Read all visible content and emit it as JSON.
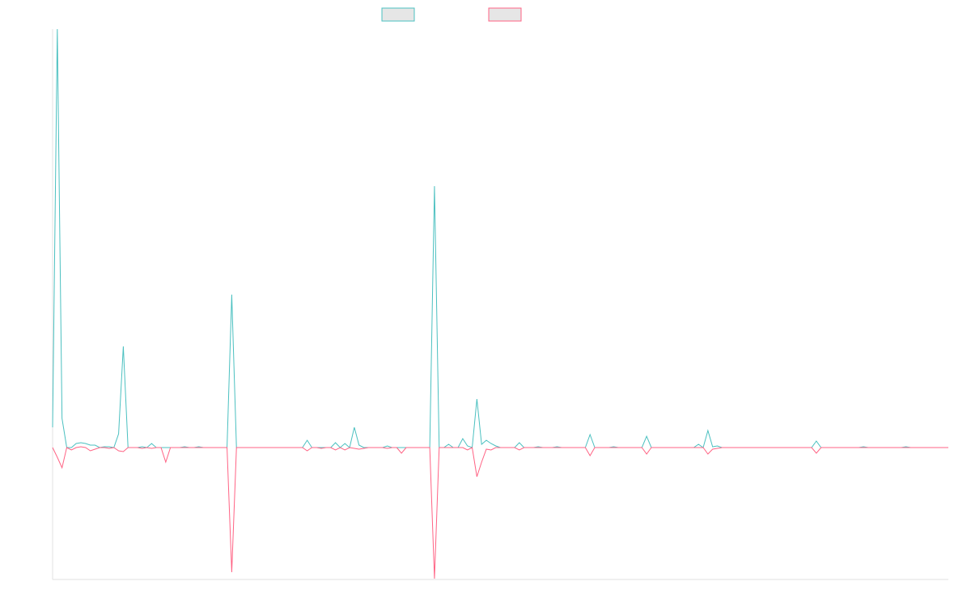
{
  "chart_data": {
    "type": "line",
    "ylim": [
      -163,
      517
    ],
    "series": [
      {
        "color": "#4bc0c0",
        "values": [
          25,
          517,
          36,
          0,
          0,
          5,
          6,
          5,
          3,
          3,
          0,
          1,
          1,
          0,
          17,
          125,
          0,
          0,
          0,
          1,
          0,
          5,
          0,
          0,
          0,
          0,
          0,
          0,
          1,
          0,
          0,
          1,
          0,
          0,
          0,
          0,
          0,
          0,
          189,
          0,
          0,
          0,
          0,
          0,
          0,
          0,
          0,
          0,
          0,
          0,
          0,
          0,
          0,
          0,
          9,
          0,
          0,
          0,
          0,
          0,
          6,
          0,
          5,
          0,
          25,
          3,
          0,
          0,
          0,
          0,
          0,
          2,
          0,
          0,
          0,
          0,
          0,
          0,
          0,
          0,
          0,
          323,
          0,
          0,
          4,
          0,
          0,
          11,
          2,
          0,
          60,
          4,
          9,
          5,
          2,
          0,
          0,
          0,
          0,
          6,
          0,
          0,
          0,
          1,
          0,
          0,
          0,
          1,
          0,
          0,
          0,
          0,
          0,
          0,
          16,
          0,
          0,
          0,
          0,
          1,
          0,
          0,
          0,
          0,
          0,
          0,
          14,
          0,
          0,
          0,
          0,
          0,
          0,
          0,
          0,
          0,
          0,
          4,
          0,
          21,
          1,
          2,
          0,
          0,
          0,
          0,
          0,
          0,
          0,
          0,
          0,
          0,
          0,
          0,
          0,
          0,
          0,
          0,
          0,
          0,
          0,
          0,
          8,
          0,
          0,
          0,
          0,
          0,
          0,
          0,
          0,
          0,
          1,
          0,
          0,
          0,
          0,
          0,
          0,
          0,
          0,
          1,
          0,
          0,
          0,
          0,
          0,
          0,
          0,
          0,
          0
        ]
      },
      {
        "color": "#ff6384",
        "values": [
          0,
          -12,
          -25,
          0,
          -3,
          0,
          1,
          0,
          -4,
          -2,
          0,
          0,
          -1,
          0,
          -4,
          -5,
          0,
          0,
          0,
          -1,
          0,
          -1,
          0,
          0,
          -18,
          0,
          0,
          0,
          0,
          0,
          0,
          0,
          0,
          0,
          0,
          0,
          0,
          0,
          -154,
          0,
          0,
          0,
          0,
          0,
          0,
          0,
          0,
          0,
          0,
          0,
          0,
          0,
          0,
          0,
          -4,
          0,
          0,
          -1,
          0,
          0,
          -3,
          0,
          -3,
          0,
          -1,
          -2,
          -1,
          0,
          0,
          0,
          0,
          -1,
          0,
          0,
          -7,
          0,
          0,
          0,
          0,
          0,
          0,
          -162,
          0,
          0,
          0,
          0,
          0,
          0,
          -3,
          0,
          -36,
          -18,
          -2,
          -3,
          0,
          0,
          0,
          0,
          0,
          -3,
          0,
          0,
          0,
          0,
          0,
          0,
          0,
          0,
          0,
          0,
          0,
          0,
          0,
          0,
          -10,
          0,
          0,
          0,
          0,
          0,
          0,
          0,
          0,
          0,
          0,
          0,
          -8,
          0,
          0,
          0,
          0,
          0,
          0,
          0,
          0,
          0,
          0,
          0,
          0,
          -8,
          -2,
          -1,
          0,
          0,
          0,
          0,
          0,
          0,
          0,
          0,
          0,
          0,
          0,
          0,
          0,
          0,
          0,
          0,
          0,
          0,
          0,
          0,
          -7,
          0,
          0,
          0,
          0,
          0,
          0,
          0,
          0,
          0,
          0,
          0,
          0,
          0,
          0,
          0,
          0,
          0,
          0,
          0,
          0,
          0,
          0,
          0,
          0,
          0,
          0,
          0,
          0
        ]
      }
    ]
  }
}
